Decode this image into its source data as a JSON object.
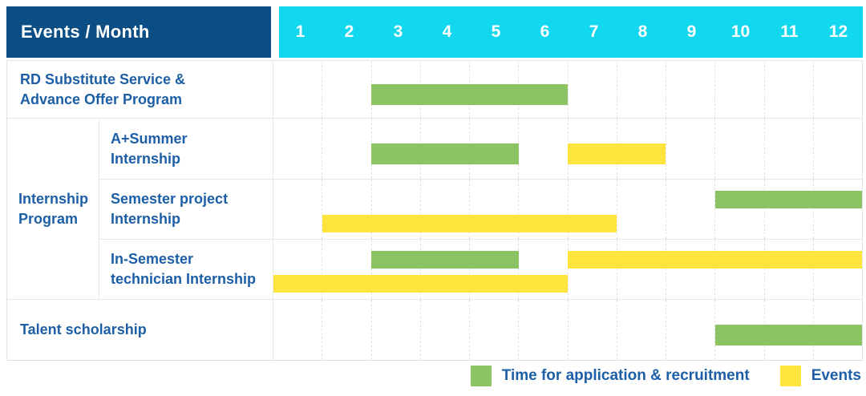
{
  "header": {
    "title": "Events / Month"
  },
  "colors": {
    "header_bg": "#0A4E85",
    "months_bg": "#12D8EF",
    "application_green": "#8CC363",
    "events_yellow": "#FFE43E",
    "text_blue": "#1D5FA6"
  },
  "legend": {
    "items": [
      {
        "key": "application",
        "label": "Time for application & recruitment"
      },
      {
        "key": "events",
        "label": "Events"
      }
    ]
  },
  "chart_data": {
    "type": "table",
    "subtype": "gantt",
    "title": "Events / Month",
    "x_axis_label": "Month",
    "x_ticks": [
      "1",
      "2",
      "3",
      "4",
      "5",
      "6",
      "7",
      "8",
      "9",
      "10",
      "11",
      "12"
    ],
    "x_range": [
      1,
      12
    ],
    "grid": true,
    "legend_position": "bottom-right",
    "legend": [
      {
        "key": "application",
        "label": "Time for application & recruitment",
        "color": "#8CC363"
      },
      {
        "key": "events",
        "label": "Events",
        "color": "#FFE43E"
      }
    ],
    "rows": [
      {
        "group": "",
        "label": "RD Substitute Service & Advance Offer Program",
        "label_lines": [
          "RD Substitute Service &",
          "Advance Offer Program"
        ],
        "lines": [
          [
            {
              "key": "application",
              "start_month": 3,
              "end_month": 6
            }
          ]
        ]
      },
      {
        "group": "Internship Program",
        "group_lines": [
          "Internship",
          "Program"
        ],
        "label": "A+Summer Internship",
        "label_lines": [
          "A+Summer",
          "Internship"
        ],
        "lines": [
          [
            {
              "key": "application",
              "start_month": 3,
              "end_month": 5
            },
            {
              "key": "events",
              "start_month": 7,
              "end_month": 8
            }
          ]
        ]
      },
      {
        "group": "Internship Program",
        "group_lines": [
          "Internship",
          "Program"
        ],
        "label": "Semester project Internship",
        "label_lines": [
          "Semester project",
          "Internship"
        ],
        "lines": [
          [
            {
              "key": "application",
              "start_month": 10,
              "end_month": 12
            }
          ],
          [
            {
              "key": "events",
              "start_month": 2,
              "end_month": 7
            }
          ]
        ]
      },
      {
        "group": "Internship Program",
        "group_lines": [
          "Internship",
          "Program"
        ],
        "label": "In-Semester technician Internship",
        "label_lines": [
          "In-Semester",
          "technician Internship"
        ],
        "lines": [
          [
            {
              "key": "application",
              "start_month": 3,
              "end_month": 5
            },
            {
              "key": "events",
              "start_month": 7,
              "end_month": 12
            }
          ],
          [
            {
              "key": "events",
              "start_month": 1,
              "end_month": 6
            }
          ]
        ]
      },
      {
        "group": "",
        "label": "Talent scholarship",
        "label_lines": [
          "Talent scholarship"
        ],
        "lines": [
          [
            {
              "key": "application",
              "start_month": 10,
              "end_month": 12
            }
          ]
        ]
      }
    ]
  }
}
